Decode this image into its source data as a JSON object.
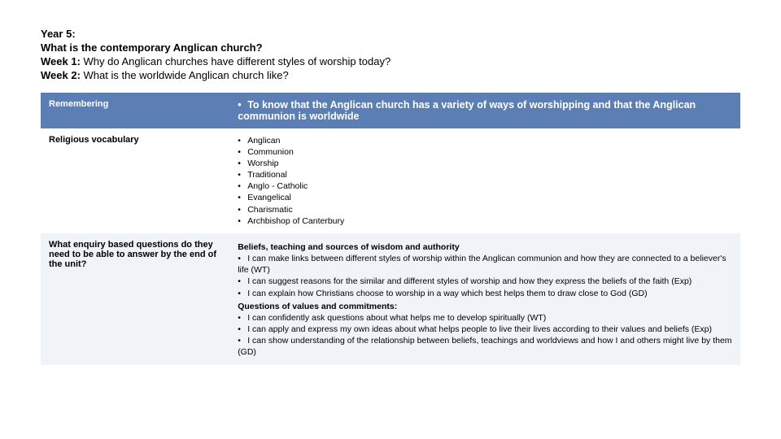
{
  "header": {
    "line1_bold": "Year 5:",
    "line2_bold": "What is the contemporary Anglican church?",
    "line3_bold": "Week 1:",
    "line3_rest": " Why do Anglican churches have different styles of worship today?",
    "line4_bold": "Week 2:",
    "line4_rest": " What is the worldwide Anglican church like?"
  },
  "rows": {
    "remembering": {
      "label": "Remembering",
      "bullets": [
        "To know that the Anglican church has a variety of ways of worshipping and that the Anglican communion is worldwide"
      ]
    },
    "vocabulary": {
      "label": "Religious vocabulary",
      "bullets": [
        "Anglican",
        "Communion",
        "Worship",
        "Traditional",
        "Anglo - Catholic",
        "Evangelical",
        "Charismatic",
        "Archbishop of Canterbury"
      ]
    },
    "enquiry": {
      "label": "What enquiry based questions do they need to be able to answer by the end of the unit?",
      "section1_title": "Beliefs, teaching and sources of wisdom and authority",
      "section1_bullets": [
        "I can make links between different styles of worship within the Anglican communion and how they are connected to a believer's life (WT)",
        "I can suggest reasons for the similar and different styles of worship and how they express the beliefs of the faith (Exp)",
        "I can explain how Christians choose to worship in a way which best helps them to draw close to God (GD)"
      ],
      "section2_title": "Questions of values and commitments:",
      "section2_bullets": [
        "I can confidently ask questions about what helps me to develop spiritually (WT)",
        "I can apply and express my own ideas about what helps people to live their lives according to their values and beliefs (Exp)",
        "I can show understanding of the relationship between beliefs, teachings and worldviews and how I and others might live by them (GD)"
      ]
    }
  },
  "colors": {
    "row_blue": "#5b7fb5",
    "row_light": "#f0f3f8",
    "text_dark": "#000000",
    "text_light": "#ffffff"
  }
}
